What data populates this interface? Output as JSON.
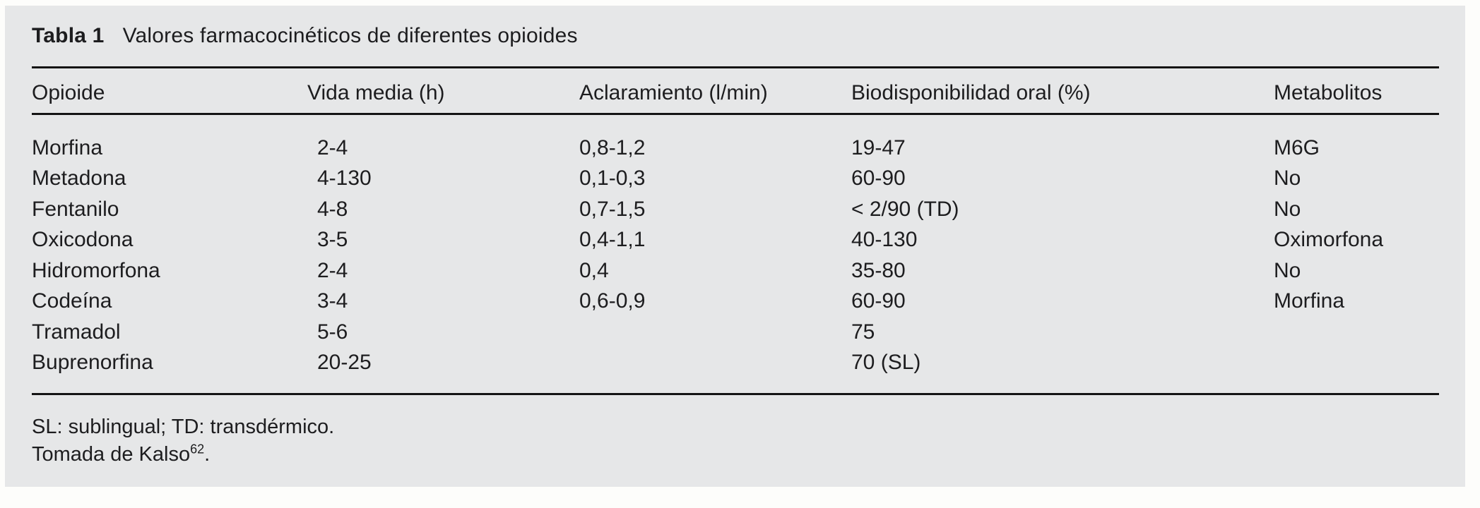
{
  "table": {
    "title_label": "Tabla 1",
    "title_text": "Valores farmacocinéticos de diferentes opioides",
    "columns": [
      "Opioide",
      "Vida media (h)",
      "Aclaramiento (l/min)",
      "Biodisponibilidad oral (%)",
      "Metabolitos"
    ],
    "rows": [
      [
        "Morfina",
        "2-4",
        "0,8-1,2",
        "19-47",
        "M6G"
      ],
      [
        "Metadona",
        "4-130",
        "0,1-0,3",
        "60-90",
        "No"
      ],
      [
        "Fentanilo",
        "4-8",
        "0,7-1,5",
        "< 2/90 (TD)",
        "No"
      ],
      [
        "Oxicodona",
        "3-5",
        "0,4-1,1",
        "40-130",
        "Oximorfona"
      ],
      [
        "Hidromorfona",
        "2-4",
        "0,4",
        "35-80",
        "No"
      ],
      [
        "Codeína",
        "3-4",
        "0,6-0,9",
        "60-90",
        "Morfina"
      ],
      [
        "Tramadol",
        "5-6",
        "",
        "75",
        ""
      ],
      [
        "Buprenorfina",
        "20-25",
        "",
        "70 (SL)",
        ""
      ]
    ],
    "footnotes": {
      "abbreviations": "SL: sublingual; TD: transdérmico.",
      "source_prefix": "Tomada de Kalso",
      "source_ref": "62",
      "source_suffix": "."
    },
    "colors": {
      "panel_bg": "#e6e7e8",
      "page_bg": "#fdfdfb",
      "text": "#1d1d1f",
      "rule": "#141414"
    }
  }
}
